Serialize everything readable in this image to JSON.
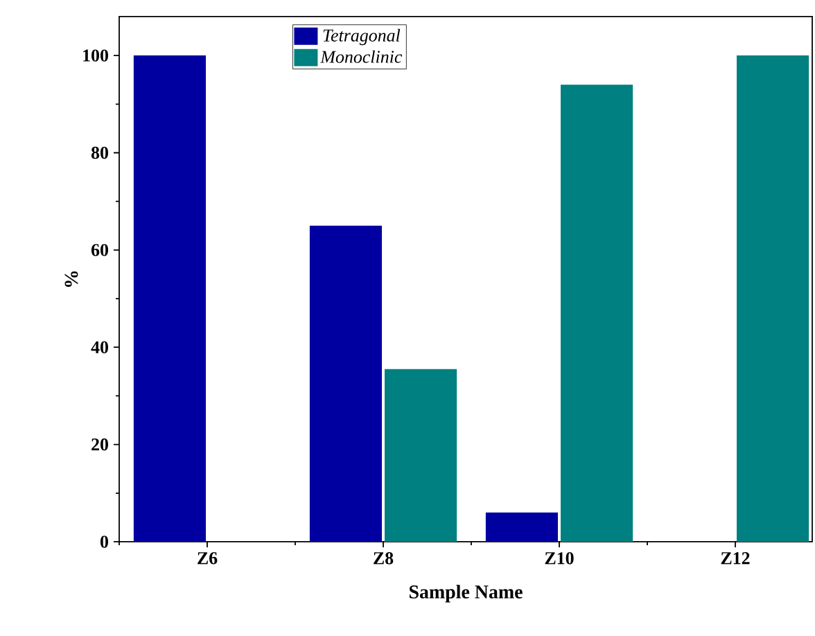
{
  "chart_data": {
    "type": "bar",
    "xlabel": "Sample Name",
    "ylabel": "%",
    "categories": [
      "Z6",
      "Z8",
      "Z10",
      "Z12"
    ],
    "series": [
      {
        "name": "*Tetragonal*",
        "color": "#0000a0",
        "values": [
          100,
          65,
          6,
          0
        ]
      },
      {
        "name": "*Monoclinic*",
        "color": "#008080",
        "values": [
          0,
          35.5,
          94,
          100
        ]
      }
    ],
    "ylim": [
      0,
      108
    ],
    "yticks": [
      0,
      20,
      40,
      60,
      80,
      100
    ],
    "grid": false,
    "legend": "top"
  }
}
